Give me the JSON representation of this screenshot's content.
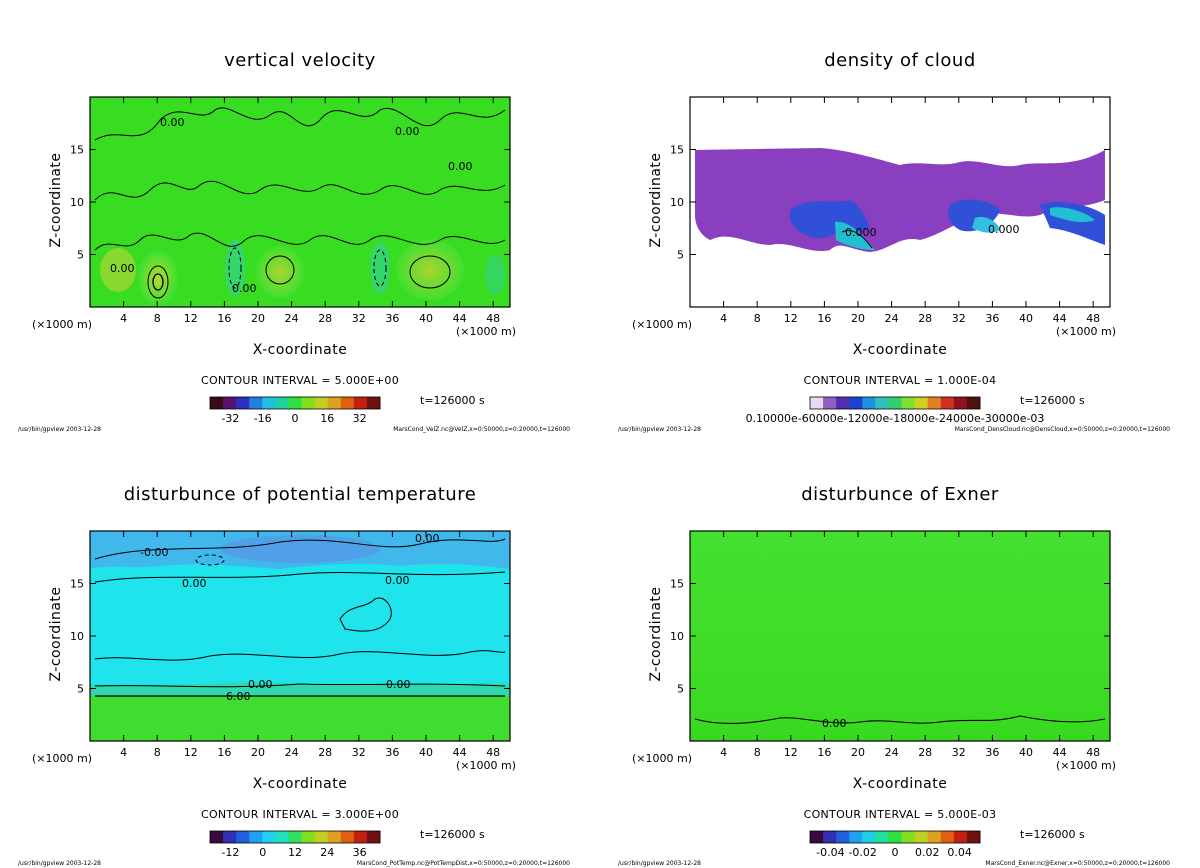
{
  "chart_data": [
    {
      "type": "heatmap",
      "id": "velz",
      "title": "vertical velocity",
      "xlabel": "X-coordinate",
      "ylabel": "Z-coordinate",
      "unit_label": "(×1000 m)",
      "xlim": [
        0,
        50
      ],
      "ylim": [
        0,
        20
      ],
      "x_ticks": [
        "4",
        "8",
        "12",
        "16",
        "20",
        "24",
        "28",
        "32",
        "36",
        "40",
        "44",
        "48"
      ],
      "y_ticks": [
        "5",
        "10",
        "15"
      ],
      "contour_labels": [
        "0.00",
        "0.00",
        "0.00",
        "0.00",
        "0.00"
      ],
      "contour_interval": "CONTOUR INTERVAL = 5.000E+00",
      "colorbar_ticks": [
        "-32",
        "-16",
        "0",
        "16",
        "32"
      ],
      "colorbar_colors": [
        "#3a0a1a",
        "#5a1070",
        "#3030c0",
        "#2080e0",
        "#20c0e0",
        "#20d0a0",
        "#30e040",
        "#80e020",
        "#c0d020",
        "#e0a020",
        "#e06010",
        "#c02010",
        "#701010"
      ],
      "time": "t=126000 s",
      "footer_left": "/usr/bin/gpview  2003-12-28",
      "footer_right": "MarsCond_VelZ.nc@VelZ,x=0:50000,z=0:20000,t=126000"
    },
    {
      "type": "heatmap",
      "id": "denscloud",
      "title": "density of cloud",
      "xlabel": "X-coordinate",
      "ylabel": "Z-coordinate",
      "unit_label": "(×1000 m)",
      "xlim": [
        0,
        50
      ],
      "ylim": [
        0,
        20
      ],
      "x_ticks": [
        "4",
        "8",
        "12",
        "16",
        "20",
        "24",
        "28",
        "32",
        "36",
        "40",
        "44",
        "48"
      ],
      "y_ticks": [
        "5",
        "10",
        "15"
      ],
      "contour_labels": [
        "0.000",
        "0.000"
      ],
      "contour_interval": "CONTOUR INTERVAL = 1.000E-04",
      "colorbar_ticks": [
        "0.10000e-60000e-12000e-18000e-24000e-30000e-03"
      ],
      "colorbar_colors": [
        "#e8d8f0",
        "#9060c0",
        "#5030b0",
        "#2040d0",
        "#2090e0",
        "#30c0c0",
        "#30d070",
        "#80e030",
        "#d0d020",
        "#e08020",
        "#d03020",
        "#901020",
        "#501010"
      ],
      "time": "t=126000 s",
      "footer_left": "/usr/bin/gpview  2003-12-28",
      "footer_right": "MarsCond_DensCloud.nc@DensCloud,x=0:50000,z=0:20000,t=126000"
    },
    {
      "type": "heatmap",
      "id": "pottemp",
      "title": "disturbunce of potential temperature",
      "xlabel": "X-coordinate",
      "ylabel": "Z-coordinate",
      "unit_label": "(×1000 m)",
      "xlim": [
        0,
        50
      ],
      "ylim": [
        0,
        20
      ],
      "x_ticks": [
        "4",
        "8",
        "12",
        "16",
        "20",
        "24",
        "28",
        "32",
        "36",
        "40",
        "44",
        "48"
      ],
      "y_ticks": [
        "5",
        "10",
        "15"
      ],
      "contour_labels": [
        "-0.00",
        "0.00",
        "0.00",
        "0.00",
        "0.00",
        "0.00",
        "6.00"
      ],
      "contour_interval": "CONTOUR INTERVAL = 3.000E+00",
      "colorbar_ticks": [
        "-12",
        "0",
        "12",
        "24",
        "36"
      ],
      "colorbar_colors": [
        "#3a0a40",
        "#3030b0",
        "#2060e0",
        "#20a0f0",
        "#20d0f0",
        "#20e0c0",
        "#30e060",
        "#80e020",
        "#c0d020",
        "#e0a020",
        "#e06010",
        "#c02010",
        "#701010"
      ],
      "time": "t=126000 s",
      "footer_left": "/usr/bin/gpview  2003-12-28",
      "footer_right": "MarsCond_PotTemp.nc@PotTempDist,x=0:50000,z=0:20000,t=126000"
    },
    {
      "type": "heatmap",
      "id": "exner",
      "title": "disturbunce of Exner",
      "xlabel": "X-coordinate",
      "ylabel": "Z-coordinate",
      "unit_label": "(×1000 m)",
      "xlim": [
        0,
        50
      ],
      "ylim": [
        0,
        20
      ],
      "x_ticks": [
        "4",
        "8",
        "12",
        "16",
        "20",
        "24",
        "28",
        "32",
        "36",
        "40",
        "44",
        "48"
      ],
      "y_ticks": [
        "5",
        "10",
        "15"
      ],
      "contour_labels": [
        "0.00"
      ],
      "contour_interval": "CONTOUR INTERVAL = 5.000E-03",
      "colorbar_ticks": [
        "-0.04",
        "-0.02",
        "0",
        "0.02",
        "0.04"
      ],
      "colorbar_colors": [
        "#3a0a40",
        "#3030b0",
        "#2060e0",
        "#20a0f0",
        "#20d0e0",
        "#20e0a0",
        "#30e040",
        "#80e020",
        "#c0d020",
        "#e0a020",
        "#e06010",
        "#c02010",
        "#701010"
      ],
      "time": "t=126000 s",
      "footer_left": "/usr/bin/gpview  2003-12-28",
      "footer_right": "MarsCond_Exner.nc@Exner,x=0:50000,z=0:20000,t=126000"
    }
  ]
}
